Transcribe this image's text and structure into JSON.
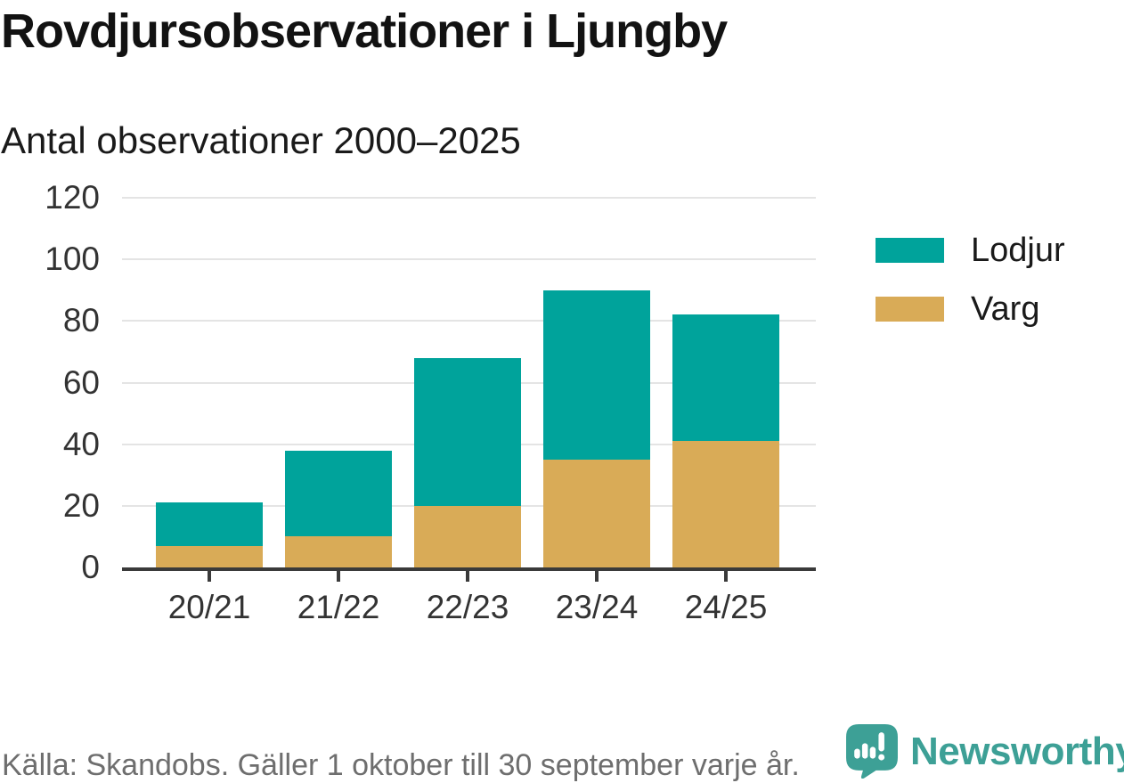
{
  "header": {
    "title": "Rovdjursobservationer i Ljungby",
    "subtitle": "Antal observationer 2000–2025"
  },
  "chart_data": {
    "type": "bar",
    "stacked": true,
    "title": "Rovdjursobservationer i Ljungby",
    "subtitle": "Antal observationer 2000–2025",
    "categories": [
      "20/21",
      "21/22",
      "22/23",
      "23/24",
      "24/25"
    ],
    "series": [
      {
        "name": "Varg",
        "color": "#d9ab57",
        "values": [
          7,
          10,
          20,
          35,
          41
        ]
      },
      {
        "name": "Lodjur",
        "color": "#00a39b",
        "values": [
          14,
          28,
          48,
          55,
          41
        ]
      }
    ],
    "stack_totals": [
      21,
      38,
      68,
      90,
      82
    ],
    "xlabel": "",
    "ylabel": "",
    "ylim": [
      0,
      120
    ],
    "yticks": [
      0,
      20,
      40,
      60,
      80,
      100,
      120
    ],
    "grid": "horizontal",
    "legend_position": "right",
    "legend_order": [
      "Lodjur",
      "Varg"
    ]
  },
  "legend": {
    "items": [
      {
        "label": "Lodjur",
        "color": "#00a39b"
      },
      {
        "label": "Varg",
        "color": "#d9ab57"
      }
    ]
  },
  "footer": {
    "source": "Källa: Skandobs. Gäller 1 oktober till 30 september varje år.",
    "brand": "Newsworthy"
  },
  "colors": {
    "teal": "#00a39b",
    "gold": "#d9ab57",
    "brand_teal": "#3da096",
    "axis": "#3a3a3a",
    "gridline": "#e4e4e4",
    "tick_text": "#333333",
    "footer_text": "#6e6e6e"
  }
}
